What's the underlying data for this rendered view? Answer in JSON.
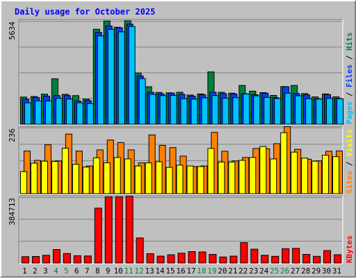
{
  "title": "Daily usage for October 2025",
  "colors": {
    "background": "#c0c0c0",
    "title": "#0000ff",
    "pages": "#00c0ff",
    "files": "#0040ff",
    "hits": "#008040",
    "sites": "#ff8000",
    "visits": "#ffff00",
    "kbytes": "#ff0000",
    "grid": "#808080",
    "weekend_label": "#008040",
    "weekday_label": "#000000"
  },
  "days": [
    "1",
    "2",
    "3",
    "4",
    "5",
    "6",
    "7",
    "8",
    "9",
    "10",
    "11",
    "12",
    "13",
    "14",
    "15",
    "16",
    "17",
    "18",
    "19",
    "20",
    "21",
    "22",
    "23",
    "24",
    "25",
    "26",
    "27",
    "28",
    "29",
    "30",
    "31"
  ],
  "weekend_days": [
    4,
    5,
    11,
    12,
    18,
    19,
    25,
    26
  ],
  "chart_data": [
    {
      "type": "bar",
      "name": "hits-files-pages",
      "ymax_label": "5634",
      "ylim": [
        0,
        5634
      ],
      "legend": [
        "Pages",
        "Files",
        "Hits"
      ],
      "categories": [
        "1",
        "2",
        "3",
        "4",
        "5",
        "6",
        "7",
        "8",
        "9",
        "10",
        "11",
        "12",
        "13",
        "14",
        "15",
        "16",
        "17",
        "18",
        "19",
        "20",
        "21",
        "22",
        "23",
        "24",
        "25",
        "26",
        "27",
        "28",
        "29",
        "30",
        "31"
      ],
      "series": [
        {
          "name": "Hits",
          "values": [
            1470,
            1500,
            1630,
            2460,
            1620,
            1550,
            1360,
            5140,
            5590,
            5250,
            5600,
            2770,
            2030,
            1720,
            1700,
            1730,
            1580,
            1640,
            2830,
            1730,
            1680,
            2100,
            1790,
            1710,
            1560,
            2040,
            2100,
            1660,
            1480,
            1640,
            1480
          ]
        },
        {
          "name": "Files",
          "values": [
            1350,
            1450,
            1520,
            1550,
            1550,
            1260,
            1280,
            4970,
            5320,
            5220,
            5420,
            2610,
            1730,
            1640,
            1680,
            1620,
            1520,
            1600,
            1730,
            1650,
            1640,
            1650,
            1600,
            1680,
            1440,
            2030,
            1660,
            1590,
            1380,
            1600,
            1400
          ]
        },
        {
          "name": "Pages",
          "values": [
            1160,
            1260,
            1260,
            1400,
            1360,
            1160,
            1120,
            4780,
            5130,
            5000,
            5290,
            2470,
            1620,
            1550,
            1560,
            1380,
            1360,
            1430,
            1550,
            1410,
            1440,
            1640,
            1540,
            1450,
            1390,
            1680,
            1540,
            1380,
            1360,
            1400,
            1380
          ]
        }
      ]
    },
    {
      "type": "bar",
      "name": "visits-sites",
      "ymax_label": "236",
      "ylim": [
        0,
        236
      ],
      "legend": [
        "Sites",
        "Visits"
      ],
      "categories": [
        "1",
        "2",
        "3",
        "4",
        "5",
        "6",
        "7",
        "8",
        "9",
        "10",
        "11",
        "12",
        "13",
        "14",
        "15",
        "16",
        "17",
        "18",
        "19",
        "20",
        "21",
        "22",
        "23",
        "24",
        "25",
        "26",
        "27",
        "28",
        "29",
        "30",
        "31"
      ],
      "series": [
        {
          "name": "Sites",
          "values": [
            151,
            118,
            173,
            116,
            211,
            151,
            98,
            155,
            190,
            181,
            155,
            109,
            208,
            171,
            163,
            133,
            96,
            98,
            217,
            150,
            116,
            128,
            160,
            159,
            177,
            237,
            157,
            122,
            116,
            150,
            151
          ]
        },
        {
          "name": "Visits",
          "values": [
            78,
            108,
            115,
            114,
            161,
            104,
            94,
            127,
            109,
            128,
            123,
            98,
            109,
            113,
            93,
            101,
            98,
            96,
            160,
            112,
            112,
            118,
            128,
            167,
            123,
            216,
            147,
            126,
            115,
            136,
            131
          ]
        }
      ]
    },
    {
      "type": "bar",
      "name": "kbytes",
      "ymax_label": "384713",
      "ylim": [
        0,
        384713
      ],
      "legend": [
        "KBytes"
      ],
      "categories": [
        "1",
        "2",
        "3",
        "4",
        "5",
        "6",
        "7",
        "8",
        "9",
        "10",
        "11",
        "12",
        "13",
        "14",
        "15",
        "16",
        "17",
        "18",
        "19",
        "20",
        "21",
        "22",
        "23",
        "24",
        "25",
        "26",
        "27",
        "28",
        "29",
        "30",
        "31"
      ],
      "series": [
        {
          "name": "KBytes",
          "values": [
            37000,
            38000,
            45000,
            78000,
            55000,
            42000,
            41000,
            317000,
            382000,
            382000,
            385000,
            145000,
            54000,
            40000,
            48000,
            57000,
            66000,
            64000,
            50000,
            35000,
            40000,
            118000,
            80000,
            45000,
            39000,
            83000,
            85000,
            50000,
            39000,
            72000,
            48000
          ]
        }
      ]
    }
  ]
}
